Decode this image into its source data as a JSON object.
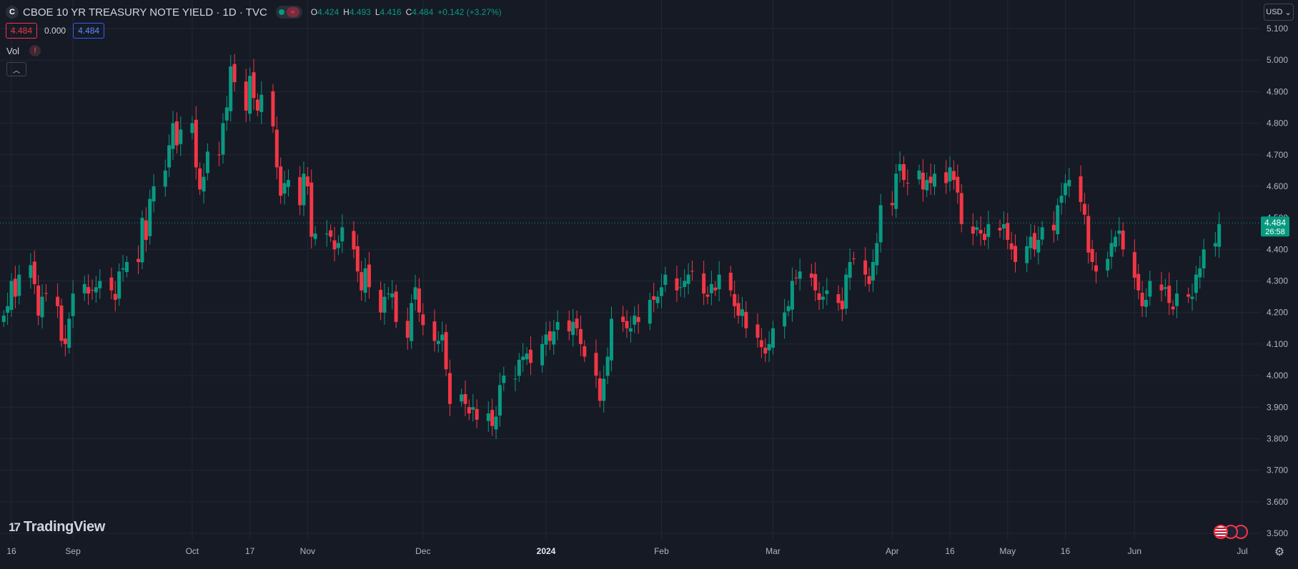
{
  "header": {
    "symbol_badge": "C",
    "title": "CBOE 10 YR TREASURY NOTE YIELD · 1D · TVC",
    "status_wave": "≈",
    "ohlc": {
      "o_label": "O",
      "o_value": "4.424",
      "h_label": "H",
      "h_value": "4.493",
      "l_label": "L",
      "l_value": "4.416",
      "c_label": "C",
      "c_value": "4.484",
      "change": "+0.142 (+3.27%)"
    },
    "bid": "4.484",
    "spread": "0.000",
    "ask": "4.484",
    "volume_label": "Vol",
    "warning_icon": "warning-icon",
    "collapse_icon": "chevron-up-icon",
    "currency": "USD"
  },
  "branding": {
    "logo_text": "TradingView",
    "logo_mark": "17"
  },
  "icons": {
    "settings": "gear-icon",
    "flags": "us-flag-icon"
  },
  "colors": {
    "background": "#161a25",
    "grid": "#232734",
    "up": "#089981",
    "down": "#f23645",
    "text": "#d1d4dc",
    "axis_text": "#b2b5be"
  },
  "chart_data": {
    "type": "candlestick",
    "title": "CBOE 10 YR TREASURY NOTE YIELD",
    "interval": "1D",
    "exchange": "TVC",
    "y_range": [
      3.45,
      5.13
    ],
    "y_ticks": [
      "5.100",
      "5.000",
      "4.900",
      "4.800",
      "4.700",
      "4.600",
      "4.500",
      "4.400",
      "4.300",
      "4.200",
      "4.100",
      "4.000",
      "3.900",
      "3.800",
      "3.700",
      "3.600",
      "3.500"
    ],
    "x_ticks": [
      {
        "date": "2023-08-16",
        "label": "16"
      },
      {
        "date": "2023-09-01",
        "label": "Sep"
      },
      {
        "date": "2023-10-02",
        "label": "Oct"
      },
      {
        "date": "2023-10-17",
        "label": "17"
      },
      {
        "date": "2023-11-01",
        "label": "Nov"
      },
      {
        "date": "2023-12-01",
        "label": "Dec"
      },
      {
        "date": "2024-01-02",
        "label": "2024"
      },
      {
        "date": "2024-02-01",
        "label": "Feb"
      },
      {
        "date": "2024-03-01",
        "label": "Mar"
      },
      {
        "date": "2024-04-01",
        "label": "Apr"
      },
      {
        "date": "2024-04-16",
        "label": "16"
      },
      {
        "date": "2024-05-01",
        "label": "May"
      },
      {
        "date": "2024-05-16",
        "label": "16"
      },
      {
        "date": "2024-06-03",
        "label": "Jun"
      },
      {
        "date": "2024-07-01",
        "label": "Jul"
      }
    ],
    "last_price": "4.484",
    "countdown": "26:58",
    "start_date": "2023-08-14",
    "closes": [
      4.19,
      4.22,
      4.3,
      4.25,
      4.32,
      4.35,
      4.29,
      4.19,
      4.25,
      4.26,
      4.22,
      4.11,
      4.1,
      4.18,
      4.26,
      4.29,
      4.26,
      4.27,
      4.28,
      4.3,
      4.27,
      4.24,
      4.33,
      4.34,
      4.36,
      4.36,
      4.5,
      4.43,
      4.56,
      4.6,
      4.65,
      4.73,
      4.8,
      4.73,
      4.78,
      4.8,
      4.66,
      4.59,
      4.63,
      4.71,
      4.7,
      4.8,
      4.85,
      4.98,
      4.93,
      4.84,
      4.95,
      4.88,
      4.84,
      4.89,
      4.79,
      4.66,
      4.57,
      4.61,
      4.62,
      4.54,
      4.64,
      4.6,
      4.44,
      4.45,
      4.45,
      4.44,
      4.4,
      4.42,
      4.47,
      4.4,
      4.33,
      4.27,
      4.34,
      4.28,
      4.2,
      4.25,
      4.26,
      4.26,
      4.17,
      4.12,
      4.23,
      4.28,
      4.2,
      4.16,
      4.11,
      4.11,
      4.13,
      4.02,
      3.91,
      3.94,
      3.91,
      3.88,
      3.9,
      3.86,
      3.88,
      3.84,
      3.87,
      3.97,
      4.0,
      3.99,
      4.05,
      4.06,
      4.07,
      4.04,
      4.1,
      4.13,
      4.11,
      4.14,
      4.17,
      4.14,
      4.17,
      4.15,
      4.1,
      4.06,
      4.0,
      3.92,
      3.99,
      4.06,
      4.18,
      4.17,
      4.15,
      4.15,
      4.19,
      4.17,
      4.24,
      4.24,
      4.25,
      4.28,
      4.32,
      4.27,
      4.28,
      4.3,
      4.32,
      4.33,
      4.26,
      4.25,
      4.29,
      4.27,
      4.32,
      4.27,
      4.22,
      4.19,
      4.21,
      4.15,
      4.12,
      4.09,
      4.07,
      4.1,
      4.15,
      4.2,
      4.22,
      4.3,
      4.31,
      4.33,
      4.31,
      4.27,
      4.24,
      4.25,
      4.27,
      4.23,
      4.21,
      4.32,
      4.36,
      4.37,
      4.32,
      4.29,
      4.36,
      4.42,
      4.54,
      4.54,
      4.64,
      4.67,
      4.62,
      4.61,
      4.65,
      4.59,
      4.62,
      4.61,
      4.64,
      4.61,
      4.66,
      4.62,
      4.58,
      4.48,
      4.45,
      4.47,
      4.45,
      4.43,
      4.48,
      4.46,
      4.48,
      4.43,
      4.4,
      4.36,
      4.41,
      4.44,
      4.4,
      4.43,
      4.47,
      4.46,
      4.54,
      4.57,
      4.61,
      4.62,
      4.55,
      4.51,
      4.39,
      4.36,
      4.33,
      4.37,
      4.42,
      4.44,
      4.46,
      4.4,
      4.31,
      4.27,
      4.22,
      4.24,
      4.3,
      4.27,
      4.28,
      4.23,
      4.21,
      4.26,
      4.25,
      4.25,
      4.32,
      4.34,
      4.4,
      4.42,
      4.48
    ]
  }
}
